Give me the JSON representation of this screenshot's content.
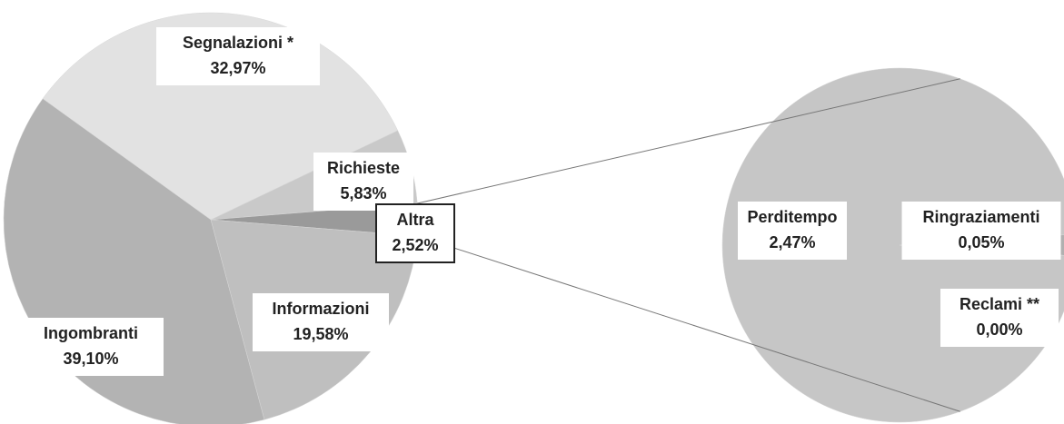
{
  "chart_data": [
    {
      "type": "pie",
      "categories": [
        "Segnalazioni *",
        "Richieste",
        "Altra",
        "Informazioni",
        "Ingombranti"
      ],
      "values": [
        32.97,
        5.83,
        2.52,
        19.58,
        39.1
      ],
      "value_labels": [
        "32,97%",
        "5,83%",
        "2,52%",
        "19,58%",
        "39,10%"
      ],
      "colors": [
        "#e2e2e2",
        "#c9c9c9",
        "#9a9a9a",
        "#bfbfbf",
        "#b3b3b3"
      ]
    },
    {
      "type": "pie",
      "categories": [
        "Perditempo",
        "Ringraziamenti",
        "Reclami **"
      ],
      "values": [
        2.47,
        0.05,
        0.0
      ],
      "value_labels": [
        "2,47%",
        "0,05%",
        "0,00%"
      ],
      "colors": [
        "#c6c6c6",
        "#b0b0b0",
        "#a0a0a0"
      ]
    }
  ]
}
